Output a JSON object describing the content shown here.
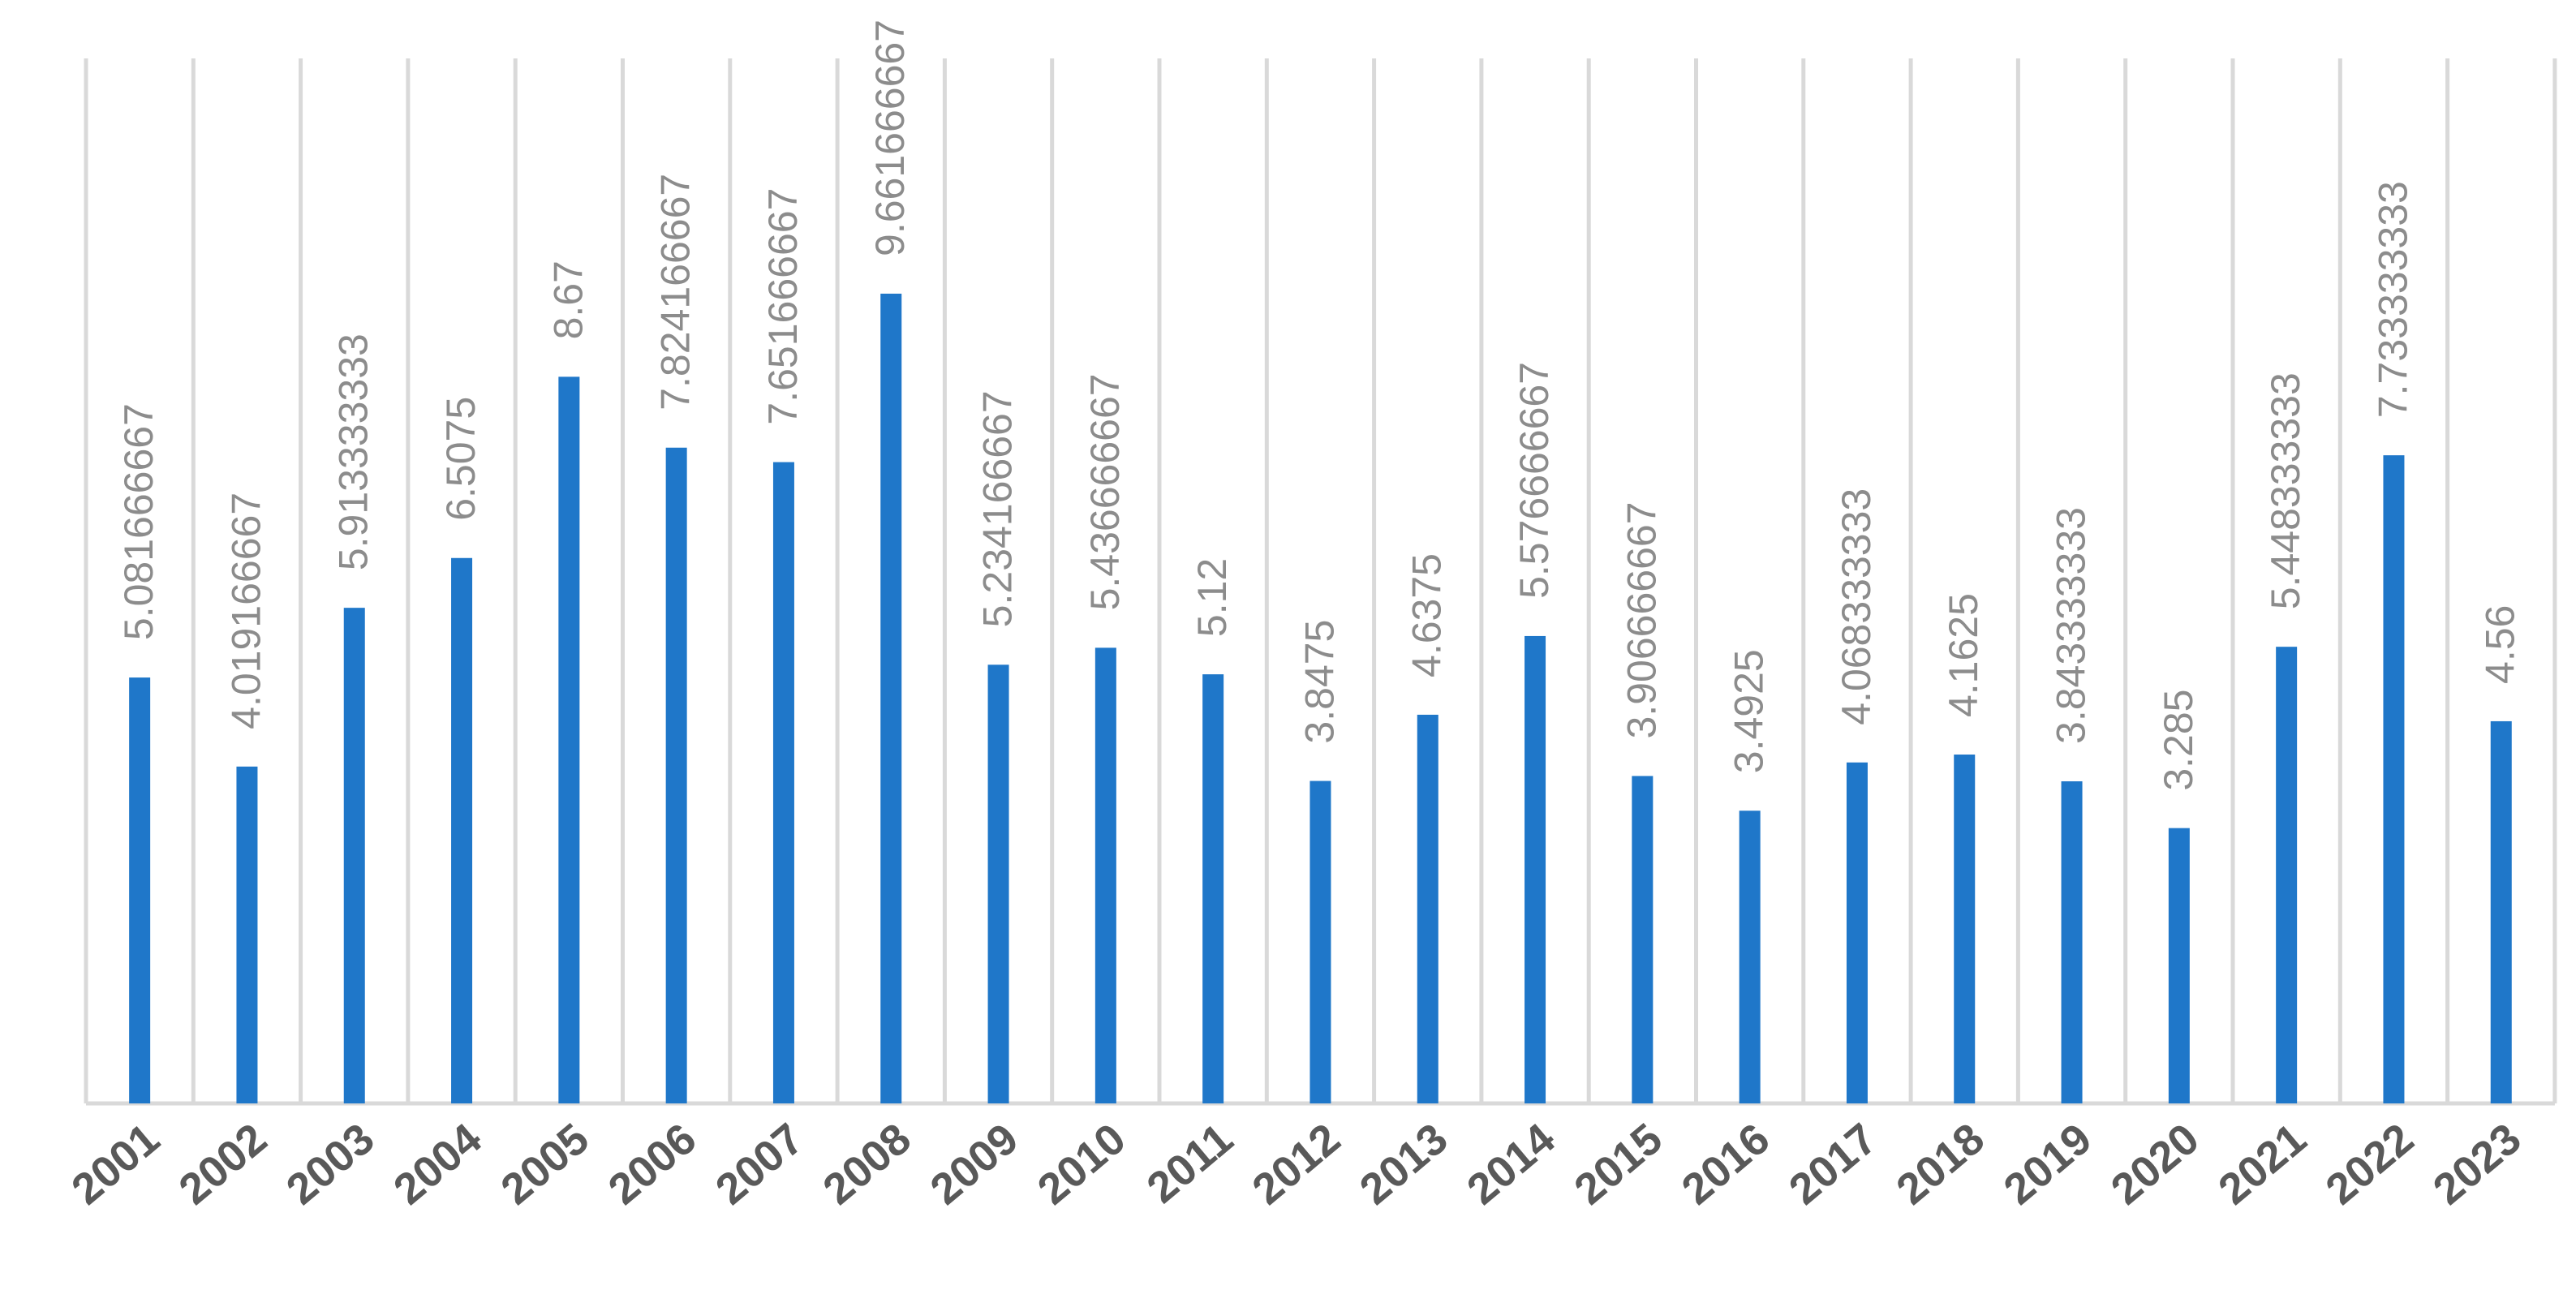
{
  "chart_data": {
    "type": "bar",
    "title": "",
    "xlabel": "",
    "ylabel": "",
    "categories": [
      "2001",
      "2002",
      "2003",
      "2004",
      "2005",
      "2006",
      "2007",
      "2008",
      "2009",
      "2010",
      "2011",
      "2012",
      "2013",
      "2014",
      "2015",
      "2016",
      "2017",
      "2018",
      "2019",
      "2020",
      "2021",
      "2022",
      "2023"
    ],
    "series": [
      {
        "values": [
          5.081666667,
          4.019166667,
          5.913333333,
          6.5075,
          8.67,
          7.824166667,
          7.651666667,
          9.661666667,
          5.234166667,
          5.436666667,
          5.12,
          3.8475,
          4.6375,
          5.576666667,
          3.906666667,
          3.4925,
          4.068333333,
          4.1625,
          3.843333333,
          3.285,
          5.448333333,
          7.733333333,
          4.56
        ],
        "data_labels": [
          "5.081666667",
          "4.019166667",
          "5.913333333",
          "6.5075",
          "8.67",
          "7.824166667",
          "7.651666667",
          "9.661666667",
          "5.234166667",
          "5.436666667",
          "5.12",
          "3.8475",
          "4.6375",
          "5.576666667",
          "3.906666667",
          "3.4925",
          "4.068333333",
          "4.1625",
          "3.843333333",
          "3.285",
          "5.448333333",
          "7.733333333",
          "4.56"
        ]
      }
    ],
    "ylim": [
      0,
      12.5
    ],
    "grid": "vertical",
    "legend": "none",
    "colors": {
      "bar": "#1f77c9",
      "grid": "#d9d9d9",
      "data_label": "#8c8c8c",
      "tick_label": "#595959"
    }
  }
}
